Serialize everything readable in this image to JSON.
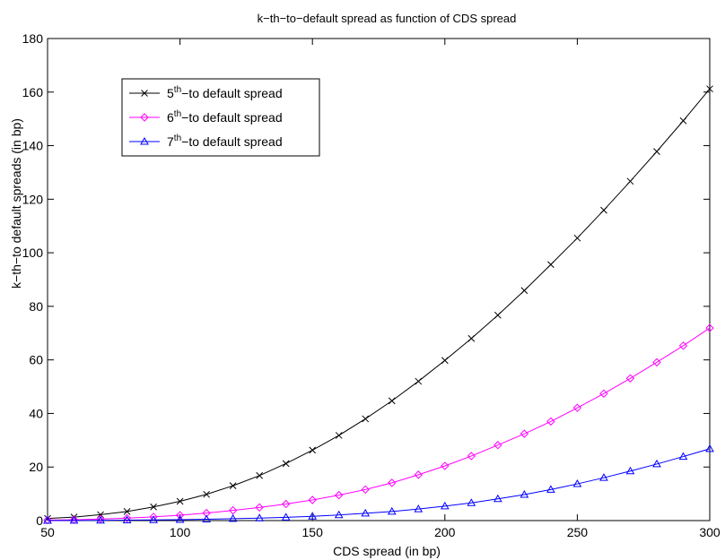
{
  "chart_data": {
    "type": "line",
    "title": "k−th−to−default spread as function of CDS spread",
    "xlabel": "CDS spread (in bp)",
    "ylabel": "k−th−to default spreads (in bp)",
    "xlim": [
      50,
      300
    ],
    "ylim": [
      0,
      180
    ],
    "x_ticks": [
      50,
      100,
      150,
      200,
      250,
      300
    ],
    "y_ticks": [
      0,
      20,
      40,
      60,
      80,
      100,
      120,
      140,
      160,
      180
    ],
    "grid": false,
    "legend_position": "top-left",
    "x": [
      50,
      60,
      70,
      80,
      90,
      100,
      110,
      120,
      130,
      140,
      150,
      160,
      170,
      180,
      190,
      200,
      210,
      220,
      230,
      240,
      250,
      260,
      270,
      280,
      290,
      300
    ],
    "series": [
      {
        "name_prefix": "5",
        "name_sup": "th",
        "name_suffix": "−to default spread",
        "color": "#000000",
        "marker": "x",
        "values": [
          0.8,
          1.3,
          2.2,
          3.4,
          5.1,
          7.2,
          9.8,
          13.0,
          16.8,
          21.3,
          26.3,
          31.8,
          38.0,
          44.7,
          52.0,
          59.8,
          68.0,
          76.7,
          85.9,
          95.6,
          105.5,
          115.9,
          126.7,
          137.8,
          149.3,
          161.2
        ]
      },
      {
        "name_prefix": "6",
        "name_sup": "th",
        "name_suffix": "−to default spread",
        "color": "#ff00ff",
        "marker": "diamond",
        "values": [
          0.2,
          0.3,
          0.6,
          0.9,
          1.4,
          2.0,
          2.8,
          3.8,
          4.9,
          6.2,
          7.7,
          9.5,
          11.6,
          14.1,
          17.1,
          20.4,
          24.1,
          28.2,
          32.4,
          37.0,
          42.1,
          47.4,
          53.1,
          59.1,
          65.3,
          71.9
        ]
      },
      {
        "name_prefix": "7",
        "name_sup": "th",
        "name_suffix": "−to default spread",
        "color": "#0000ff",
        "marker": "triangle",
        "values": [
          0.0,
          0.05,
          0.1,
          0.15,
          0.25,
          0.35,
          0.5,
          0.7,
          0.9,
          1.2,
          1.6,
          2.1,
          2.7,
          3.4,
          4.3,
          5.4,
          6.6,
          8.1,
          9.7,
          11.6,
          13.7,
          16.0,
          18.5,
          21.1,
          23.9,
          26.8
        ]
      }
    ]
  }
}
